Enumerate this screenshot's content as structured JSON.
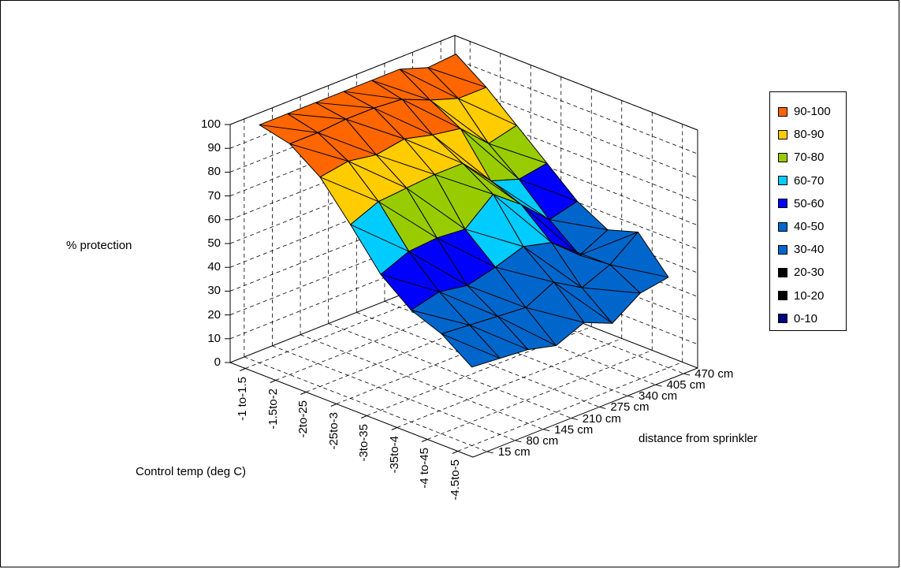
{
  "chart_data": {
    "type": "surface3d",
    "zlabel": "% protection",
    "xlabel": "Control temp (deg C)",
    "ylabel": "distance from sprinkler",
    "zlim": [
      0,
      100
    ],
    "z_ticks": [
      "100",
      "90",
      "80",
      "70",
      "60",
      "50",
      "40",
      "30",
      "20",
      "10",
      "0"
    ],
    "x_categories": [
      "-1 to-1.5",
      "-1.5to-2",
      "-2to-25",
      "-25to-3",
      "-3to-35",
      "-35to-4",
      "-4 to-45",
      "-4.5to-5"
    ],
    "y_categories": [
      "15 cm",
      "80 cm",
      "145 cm",
      "210 cm",
      "275 cm",
      "340 cm",
      "405 cm",
      "470 cm"
    ],
    "legend": [
      {
        "label": "90-100",
        "color": "#ff6600"
      },
      {
        "label": "80-90",
        "color": "#ffcc00"
      },
      {
        "label": "70-80",
        "color": "#99cc00"
      },
      {
        "label": "60-70",
        "color": "#00ccff"
      },
      {
        "label": "50-60",
        "color": "#0000ff"
      },
      {
        "label": "40-50",
        "color": "#0066cc"
      },
      {
        "label": "30-40",
        "color": "#0066cc"
      },
      {
        "label": "20-30",
        "color": "#000000"
      },
      {
        "label": "10-20",
        "color": "#000000"
      },
      {
        "label": "0-10",
        "color": "#000080"
      }
    ],
    "z_values": [
      [
        100,
        97,
        88,
        73,
        57,
        47,
        42,
        33
      ],
      [
        100,
        97,
        90,
        78,
        62,
        50,
        41,
        32
      ],
      [
        100,
        98,
        88,
        79,
        63,
        48,
        40,
        31
      ],
      [
        100,
        98,
        90,
        80,
        62,
        51,
        39,
        28
      ],
      [
        100,
        97,
        87,
        80,
        72,
        55,
        45,
        33
      ],
      [
        100,
        92,
        85,
        68,
        63,
        52,
        38,
        28
      ],
      [
        96,
        88,
        74,
        64,
        52,
        42,
        43,
        36
      ],
      [
        97,
        88,
        77,
        66,
        55,
        48,
        52,
        38
      ]
    ]
  }
}
